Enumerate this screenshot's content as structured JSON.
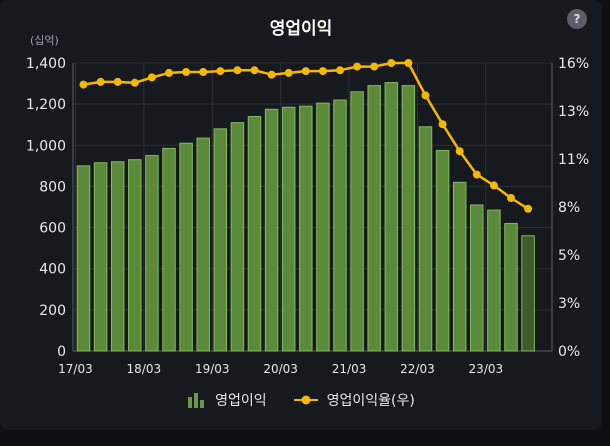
{
  "header": {
    "title": "영업이익",
    "unit_label": "(십억)",
    "help_label": "?"
  },
  "legend": {
    "bar_label": "영업이익",
    "line_label": "영업이익율(우)"
  },
  "colors": {
    "bar_fill": "#5a8a3a",
    "bar_stroke": "#86b85e",
    "bar_last_fill": "#3d5c28",
    "line": "#f5b800",
    "grid": "#2c3038",
    "axis_text": "#e6e8eb"
  },
  "chart_data": {
    "type": "bar+line",
    "title": "영업이익",
    "categories_ticks": [
      "17/03",
      "18/03",
      "19/03",
      "20/03",
      "21/03",
      "22/03",
      "23/03"
    ],
    "y_left": {
      "label": "(십억)",
      "min": 0,
      "max": 1400,
      "ticks": [
        0,
        200,
        400,
        600,
        800,
        1000,
        1200,
        1400
      ],
      "tick_labels": [
        "0",
        "200",
        "400",
        "600",
        "800",
        "1,000",
        "1,200",
        "1,400"
      ]
    },
    "y_right": {
      "min": 0,
      "max": 16,
      "ticks": [
        0,
        2.67,
        5.33,
        8,
        10.67,
        13.33,
        16
      ],
      "tick_labels": [
        "0%",
        "3%",
        "5%",
        "8%",
        "11%",
        "13%",
        "16%"
      ]
    },
    "series": [
      {
        "name": "영업이익",
        "type": "bar",
        "axis": "left",
        "values": [
          900,
          915,
          920,
          930,
          950,
          985,
          1010,
          1035,
          1080,
          1110,
          1140,
          1175,
          1185,
          1190,
          1205,
          1220,
          1260,
          1290,
          1305,
          1290,
          1090,
          975,
          820,
          710,
          685,
          620,
          560
        ]
      },
      {
        "name": "영업이익율(우)",
        "type": "line",
        "axis": "right",
        "values": [
          14.8,
          14.95,
          14.95,
          14.9,
          15.2,
          15.45,
          15.5,
          15.5,
          15.55,
          15.6,
          15.6,
          15.35,
          15.45,
          15.55,
          15.55,
          15.6,
          15.8,
          15.8,
          16.0,
          16.0,
          14.2,
          12.6,
          11.1,
          9.8,
          9.2,
          8.5,
          7.9
        ]
      }
    ]
  }
}
